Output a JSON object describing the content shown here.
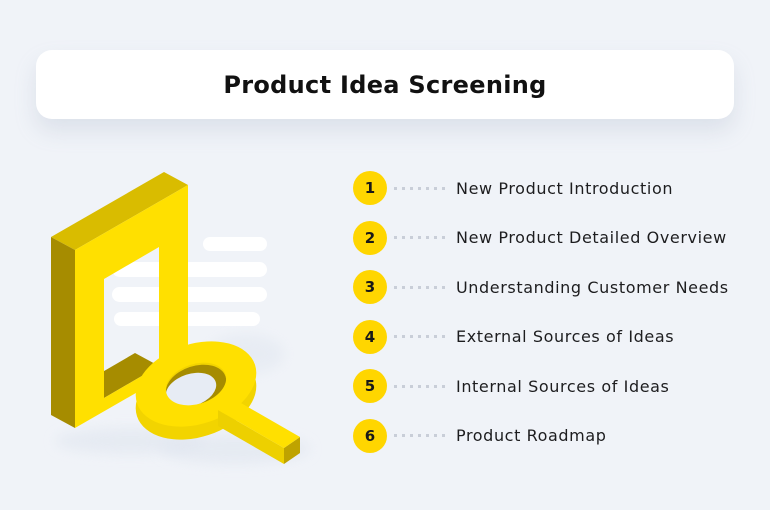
{
  "page_background": "#F0F3F8",
  "header": {
    "title": "Product Idea Screening"
  },
  "list": {
    "items": [
      {
        "number": "1",
        "label": "New Product Introduction"
      },
      {
        "number": "2",
        "label": "New Product Detailed Overview"
      },
      {
        "number": "3",
        "label": "Understanding Customer Needs"
      },
      {
        "number": "4",
        "label": "External Sources of Ideas"
      },
      {
        "number": "5",
        "label": "Internal Sources of Ideas"
      },
      {
        "number": "6",
        "label": "Product Roadmap"
      }
    ],
    "badge_color": "#FFD600",
    "dot_color": "#C9CED8"
  },
  "illustration": {
    "name": "isometric-frame-with-magnifying-glass",
    "colors": {
      "front": "#FFE000",
      "top": "#D9BC00",
      "side": "#A68C00",
      "under": "#F2D400",
      "handle_side": "#EDD000",
      "handle_cap": "#BFA300",
      "glass": "#E7ECF4",
      "bar": "#FFFFFF",
      "shadow": "#DEE4EE"
    }
  }
}
